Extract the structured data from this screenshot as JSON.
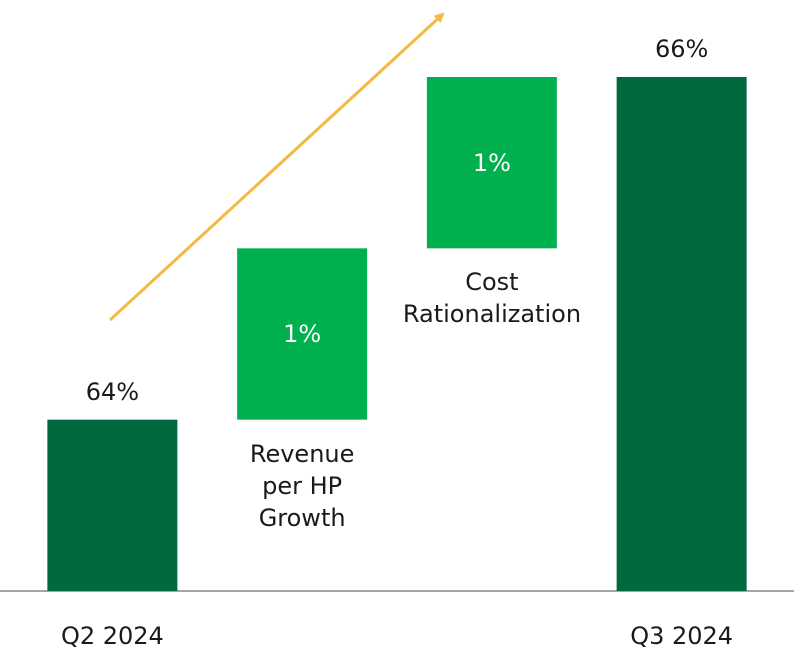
{
  "chart_data": {
    "type": "waterfall",
    "categories": [
      "Q2 2024",
      "Revenue per HP Growth",
      "Cost Rationalization",
      "Q3 2024"
    ],
    "values": [
      64,
      1,
      1,
      66
    ],
    "value_labels": [
      "64%",
      "1%",
      "1%",
      "66%"
    ],
    "color": "#00b04f",
    "total_color": "#006a3e",
    "ylim": [
      63,
      66
    ]
  }
}
